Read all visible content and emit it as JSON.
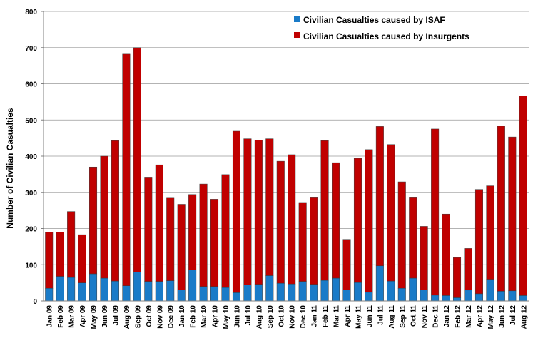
{
  "chart_data": {
    "type": "bar",
    "stacked": true,
    "title": "",
    "xlabel": "",
    "ylabel": "Number of Civilian Casualties",
    "ylim": [
      0,
      800
    ],
    "yticks": [
      0,
      100,
      200,
      300,
      400,
      500,
      600,
      700,
      800
    ],
    "grid": "horizontal",
    "legend_position": "top-right",
    "categories": [
      "Jan 09",
      "Feb 09",
      "Mar 09",
      "Apr 09",
      "May 09",
      "Jun 09",
      "Jul 09",
      "Aug 09",
      "Sep 09",
      "Oct 09",
      "Nov 09",
      "Dec 09",
      "Jan 10",
      "Feb 10",
      "Mar 10",
      "Apr 10",
      "May 10",
      "Jun 10",
      "Jul 10",
      "Aug 10",
      "Sep 10",
      "Oct 10",
      "Nov 10",
      "Dec 10",
      "Jan 11",
      "Feb 11",
      "Mar 11",
      "Apr 11",
      "May 11",
      "Jun 11",
      "Jul 11",
      "Aug 11",
      "Sep 11",
      "Oct 11",
      "Nov 11",
      "Dec 11",
      "Jan 12",
      "Feb 12",
      "Mar 12",
      "Apr 12",
      "May 12",
      "Jun 12",
      "Jul 12",
      "Aug 12"
    ],
    "series": [
      {
        "name": "Civilian Casualties caused by ISAF",
        "color": "#1a7bc8",
        "values": [
          35,
          68,
          65,
          50,
          75,
          63,
          55,
          42,
          80,
          54,
          54,
          56,
          31,
          86,
          40,
          40,
          37,
          23,
          44,
          46,
          70,
          49,
          47,
          54,
          46,
          57,
          63,
          31,
          51,
          24,
          97,
          55,
          35,
          63,
          31,
          16,
          15,
          9,
          30,
          20,
          60,
          27,
          28,
          15
        ]
      },
      {
        "name": "Civilian Casualties caused by Insurgents",
        "color": "#c00000",
        "values": [
          155,
          122,
          182,
          133,
          295,
          337,
          388,
          640,
          620,
          288,
          322,
          230,
          236,
          208,
          283,
          241,
          312,
          446,
          404,
          398,
          378,
          337,
          357,
          218,
          241,
          386,
          319,
          139,
          343,
          394,
          385,
          377,
          294,
          224,
          175,
          459,
          225,
          111,
          115,
          288,
          258,
          456,
          425,
          552
        ]
      }
    ]
  }
}
